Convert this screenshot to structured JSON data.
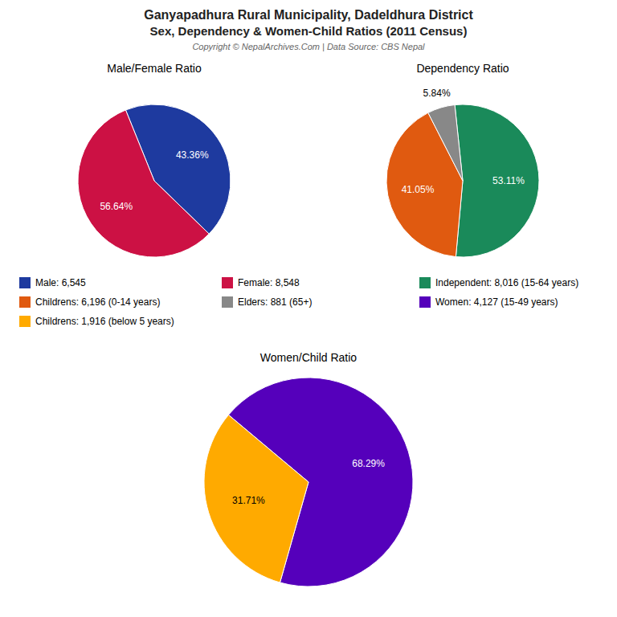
{
  "title": "Ganyapadhura Rural Municipality, Dadeldhura District",
  "subtitle": "Sex, Dependency & Women-Child Ratios (2011 Census)",
  "annotations": [
    "Copyright © NepalArchives.Com | Data Source: CBS Nepal"
  ],
  "chart_data": [
    {
      "type": "pie",
      "title": "Male/Female Ratio",
      "categories": [
        "Male: 6,545",
        "Female: 8,548"
      ],
      "values": [
        43.36,
        56.64
      ],
      "value_labels": [
        "43.36%",
        "56.64%"
      ],
      "colors": [
        "#1e3a9f",
        "#cc1144"
      ],
      "data_labels": true,
      "legend": "bottom"
    },
    {
      "type": "pie",
      "title": "Dependency Ratio",
      "categories": [
        "Independent: 8,016 (15-64 years)",
        "Childrens: 6,196 (0-14 years)",
        "Elders: 881 (65+)"
      ],
      "values": [
        53.11,
        41.05,
        5.84
      ],
      "value_labels": [
        "53.11%",
        "41.05%",
        "5.84%"
      ],
      "colors": [
        "#1a8a5a",
        "#e05a10",
        "#888888"
      ],
      "data_labels": true,
      "legend": "bottom"
    },
    {
      "type": "pie",
      "title": "Women/Child Ratio",
      "categories": [
        "Women: 4,127 (15-49 years)",
        "Childrens: 1,916 (below 5 years)"
      ],
      "values": [
        68.29,
        31.71
      ],
      "value_labels": [
        "68.29%",
        "31.71%"
      ],
      "colors": [
        "#5500bb",
        "#ffaa00"
      ],
      "data_labels": true,
      "legend": "bottom"
    }
  ]
}
